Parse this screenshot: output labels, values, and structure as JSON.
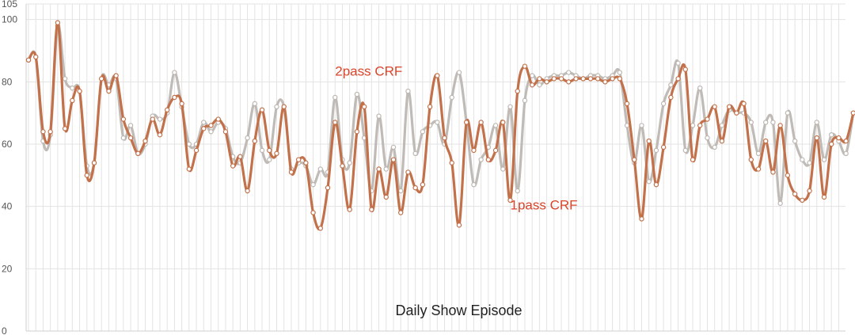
{
  "chart_data": {
    "type": "line",
    "title": "",
    "xlabel": "Daily Show Episode",
    "ylabel": "",
    "ylim": [
      0,
      105
    ],
    "yticks": [
      0,
      20,
      40,
      60,
      80,
      100,
      105
    ],
    "grid": true,
    "point_count": 114,
    "annotations": [
      {
        "text": "2pass CRF",
        "series": "2pass CRF",
        "anchor_x_index": 42,
        "anchor_y_value": 82
      },
      {
        "text": "1pass CRF",
        "series": "1pass CRF",
        "anchor_x_index": 66,
        "anchor_y_value": 39
      }
    ],
    "series": [
      {
        "name": "2pass CRF",
        "color": "#bdb7b2",
        "values": [
          87,
          88,
          61,
          63,
          98,
          81,
          78,
          77,
          53,
          54,
          81,
          79,
          81,
          62,
          66,
          57,
          60,
          69,
          68,
          70,
          83,
          72,
          60,
          60,
          67,
          64,
          67,
          65,
          56,
          54,
          62,
          73,
          58,
          55,
          72,
          72,
          52,
          54,
          53,
          47,
          52,
          51,
          75,
          55,
          54,
          76,
          62,
          45,
          69,
          52,
          59,
          45,
          77,
          57,
          64,
          66,
          67,
          60,
          75,
          83,
          67,
          47,
          55,
          59,
          66,
          52,
          72,
          45,
          74,
          82,
          79,
          81,
          82,
          82,
          83,
          82,
          81,
          82,
          82,
          81,
          82,
          83,
          66,
          54,
          66,
          48,
          58,
          73,
          79,
          86,
          58,
          66,
          78,
          62,
          59,
          66,
          71,
          70,
          70,
          67,
          57,
          67,
          67,
          41,
          70,
          61,
          55,
          54,
          67,
          55,
          63,
          61,
          57,
          70
        ]
      },
      {
        "name": "1pass CRF",
        "color": "#c2714a",
        "values": [
          87,
          88,
          64,
          64,
          99,
          65,
          74,
          77,
          50,
          54,
          81,
          77,
          82,
          68,
          62,
          57,
          61,
          68,
          63,
          71,
          75,
          73,
          52,
          58,
          65,
          66,
          68,
          64,
          53,
          56,
          45,
          61,
          71,
          58,
          57,
          72,
          51,
          55,
          54,
          38,
          33,
          46,
          67,
          53,
          39,
          64,
          72,
          39,
          52,
          43,
          55,
          38,
          51,
          46,
          47,
          72,
          82,
          62,
          54,
          34,
          67,
          58,
          67,
          55,
          58,
          67,
          42,
          77,
          85,
          79,
          81,
          80,
          81,
          81,
          80,
          81,
          81,
          81,
          81,
          80,
          81,
          81,
          73,
          55,
          36,
          61,
          47,
          59,
          75,
          81,
          84,
          55,
          66,
          68,
          72,
          61,
          72,
          70,
          73,
          55,
          52,
          61,
          51,
          66,
          50,
          44,
          42,
          45,
          62,
          43,
          60,
          62,
          61,
          70
        ]
      }
    ]
  }
}
